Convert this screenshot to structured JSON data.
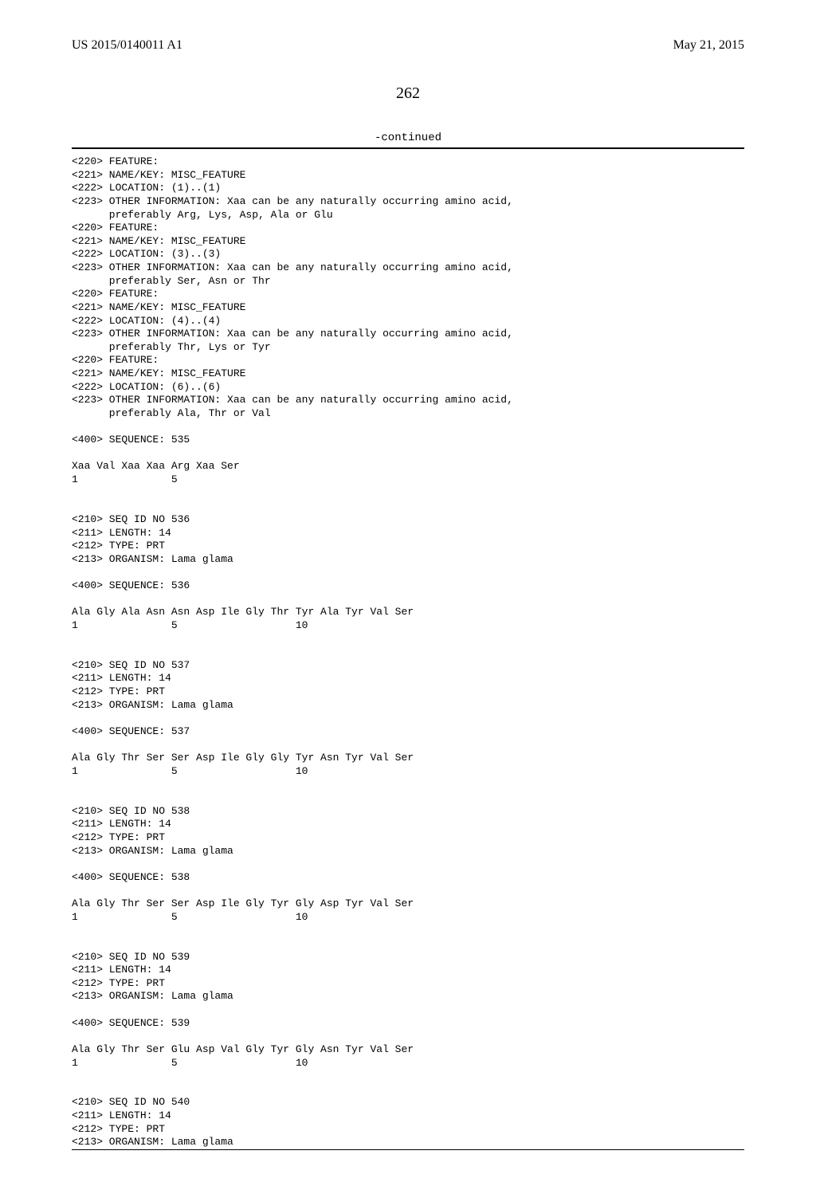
{
  "header": {
    "publication_id": "US 2015/0140011 A1",
    "publication_date": "May 21, 2015"
  },
  "page_number": "262",
  "continued_label": "-continued",
  "sequence_listing": "<220> FEATURE:\n<221> NAME/KEY: MISC_FEATURE\n<222> LOCATION: (1)..(1)\n<223> OTHER INFORMATION: Xaa can be any naturally occurring amino acid,\n      preferably Arg, Lys, Asp, Ala or Glu\n<220> FEATURE:\n<221> NAME/KEY: MISC_FEATURE\n<222> LOCATION: (3)..(3)\n<223> OTHER INFORMATION: Xaa can be any naturally occurring amino acid,\n      preferably Ser, Asn or Thr\n<220> FEATURE:\n<221> NAME/KEY: MISC_FEATURE\n<222> LOCATION: (4)..(4)\n<223> OTHER INFORMATION: Xaa can be any naturally occurring amino acid,\n      preferably Thr, Lys or Tyr\n<220> FEATURE:\n<221> NAME/KEY: MISC_FEATURE\n<222> LOCATION: (6)..(6)\n<223> OTHER INFORMATION: Xaa can be any naturally occurring amino acid,\n      preferably Ala, Thr or Val\n\n<400> SEQUENCE: 535\n\nXaa Val Xaa Xaa Arg Xaa Ser\n1               5\n\n\n<210> SEQ ID NO 536\n<211> LENGTH: 14\n<212> TYPE: PRT\n<213> ORGANISM: Lama glama\n\n<400> SEQUENCE: 536\n\nAla Gly Ala Asn Asn Asp Ile Gly Thr Tyr Ala Tyr Val Ser\n1               5                   10\n\n\n<210> SEQ ID NO 537\n<211> LENGTH: 14\n<212> TYPE: PRT\n<213> ORGANISM: Lama glama\n\n<400> SEQUENCE: 537\n\nAla Gly Thr Ser Ser Asp Ile Gly Gly Tyr Asn Tyr Val Ser\n1               5                   10\n\n\n<210> SEQ ID NO 538\n<211> LENGTH: 14\n<212> TYPE: PRT\n<213> ORGANISM: Lama glama\n\n<400> SEQUENCE: 538\n\nAla Gly Thr Ser Ser Asp Ile Gly Tyr Gly Asp Tyr Val Ser\n1               5                   10\n\n\n<210> SEQ ID NO 539\n<211> LENGTH: 14\n<212> TYPE: PRT\n<213> ORGANISM: Lama glama\n\n<400> SEQUENCE: 539\n\nAla Gly Thr Ser Glu Asp Val Gly Tyr Gly Asn Tyr Val Ser\n1               5                   10\n\n\n<210> SEQ ID NO 540\n<211> LENGTH: 14\n<212> TYPE: PRT\n<213> ORGANISM: Lama glama"
}
